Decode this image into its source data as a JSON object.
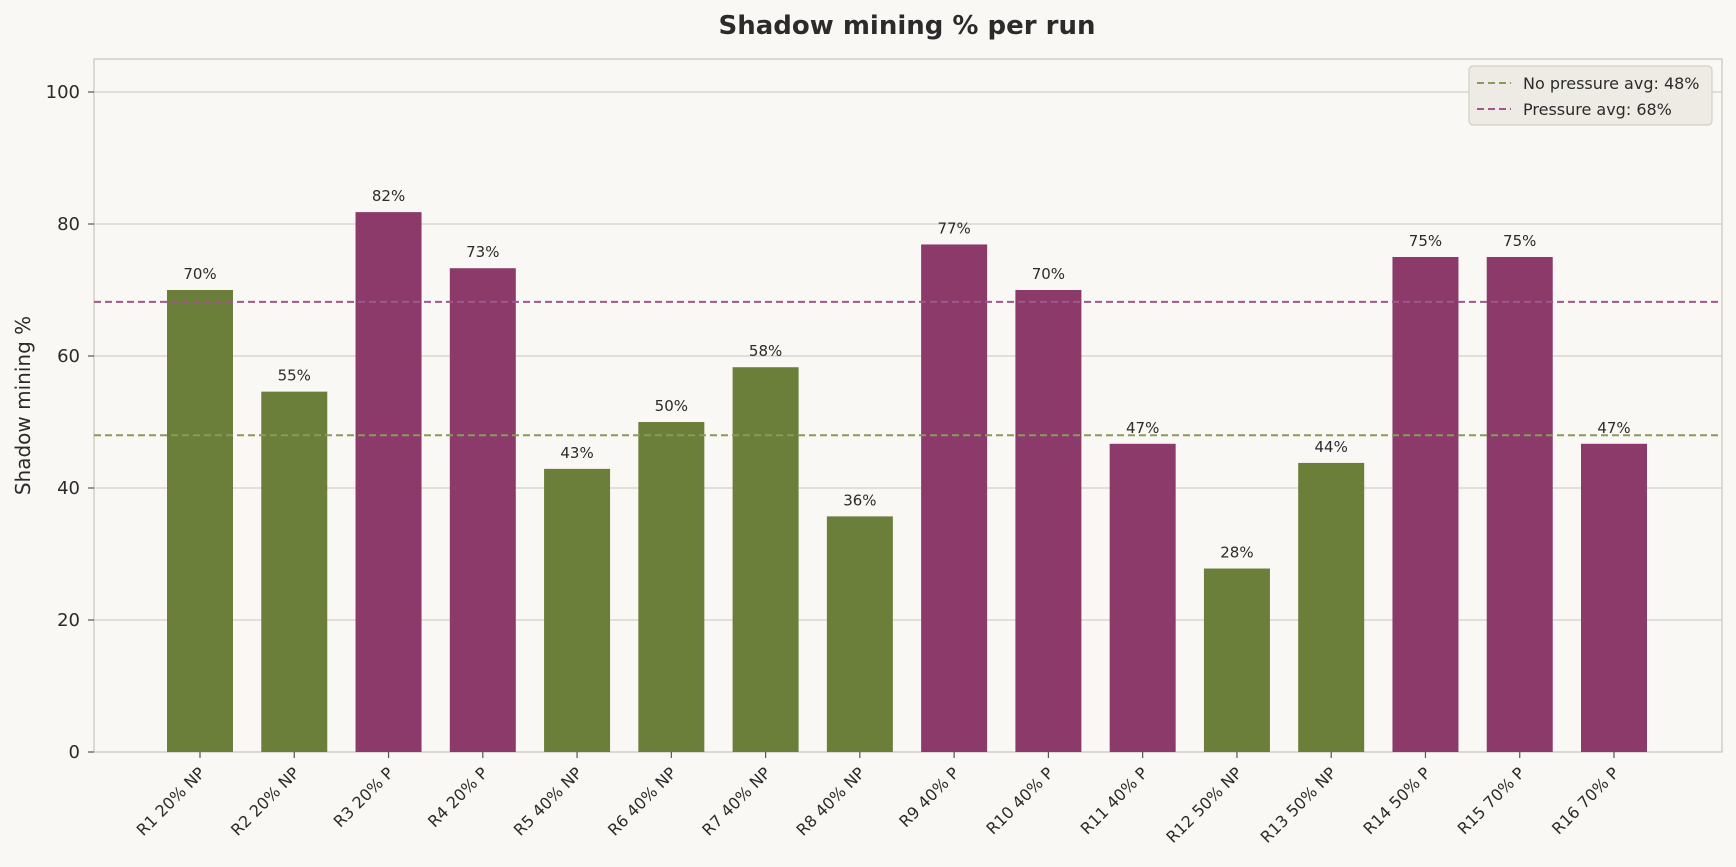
{
  "chart_data": {
    "type": "bar",
    "title": "Shadow mining % per run",
    "xlabel": "",
    "ylabel": "Shadow mining %",
    "ylim": [
      0,
      105
    ],
    "yticks": [
      0,
      20,
      40,
      60,
      80,
      100
    ],
    "grid": "horizontal",
    "legend_position": "top-right",
    "categories": [
      "R1 20% NP",
      "R2 20% NP",
      "R3 20% P",
      "R4 20% P",
      "R5 40% NP",
      "R6 40% NP",
      "R7 40% NP",
      "R8 40% NP",
      "R9 40% P",
      "R10 40% P",
      "R11 40% P",
      "R12 50% NP",
      "R13 50% NP",
      "R14 50% P",
      "R15 70% P",
      "R16 70% P"
    ],
    "values": [
      70,
      54.6,
      81.8,
      73.3,
      42.9,
      50,
      58.3,
      35.7,
      76.9,
      70,
      46.7,
      27.8,
      43.8,
      75,
      75,
      46.7
    ],
    "value_labels": [
      "70%",
      "55%",
      "82%",
      "73%",
      "43%",
      "50%",
      "58%",
      "36%",
      "77%",
      "70%",
      "47%",
      "28%",
      "44%",
      "75%",
      "75%",
      "47%"
    ],
    "groups": [
      "NP",
      "NP",
      "P",
      "P",
      "NP",
      "NP",
      "NP",
      "NP",
      "P",
      "P",
      "P",
      "NP",
      "NP",
      "P",
      "P",
      "P"
    ],
    "colors": {
      "NP": "#6b7f3a",
      "P": "#8b3a6a",
      "NP_avg_line": "#8a9a5b",
      "P_avg_line": "#a0578a"
    },
    "reference_lines": [
      {
        "label": "No pressure avg: 48%",
        "value": 48,
        "group": "NP"
      },
      {
        "label": "Pressure avg: 68%",
        "value": 68.2,
        "group": "P"
      }
    ]
  }
}
